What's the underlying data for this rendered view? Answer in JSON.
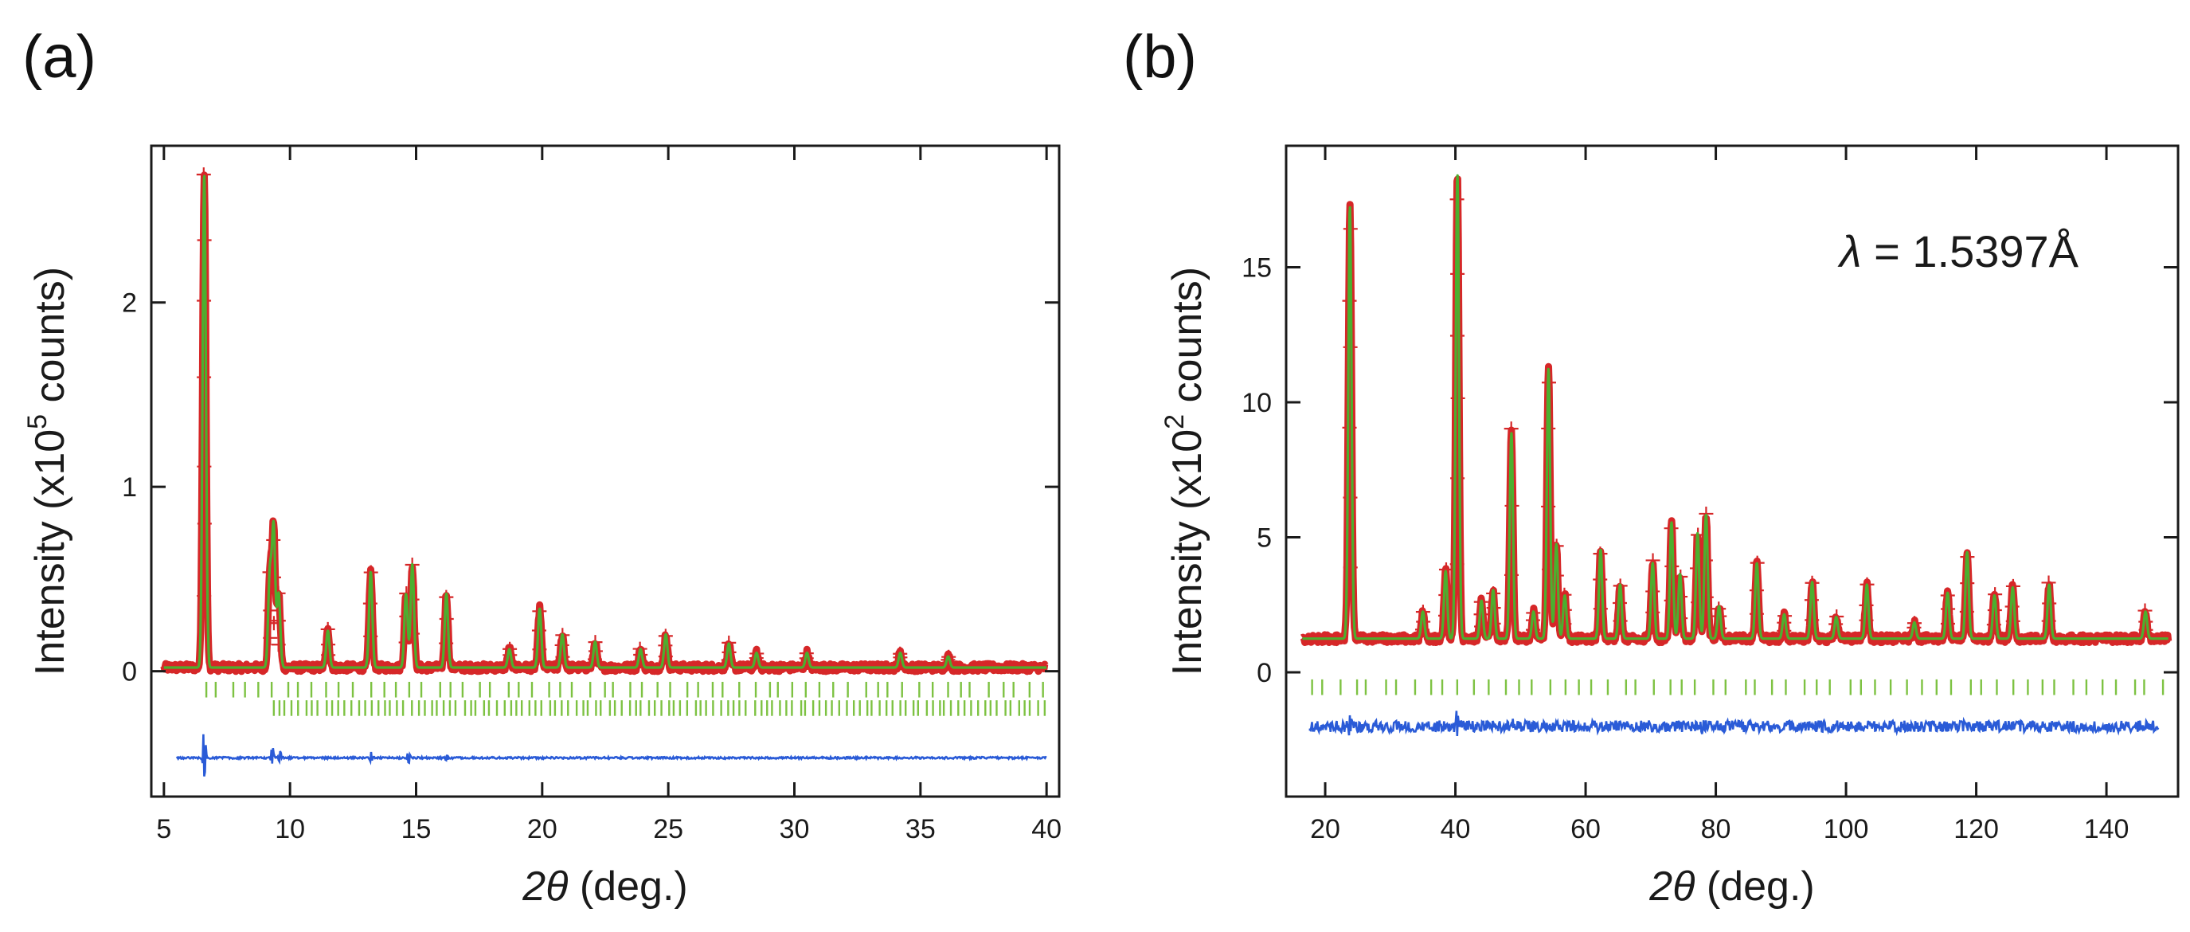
{
  "colors": {
    "observed": "#d62728",
    "calculated": "#4caf2f",
    "reflections": "#7dc242",
    "difference": "#2a5bd7",
    "axis": "#1a1a1a"
  },
  "chart_data": [
    {
      "panel_label": "(a)",
      "type": "line",
      "title": "",
      "xlabel_symbol": "2θ",
      "xlabel_unit": "(deg.)",
      "ylabel": "Intensity (x10",
      "ylabel_exp": "5",
      "ylabel_suffix": " counts)",
      "xlim": [
        4.5,
        40.5
      ],
      "ylim": [
        -0.68,
        2.85
      ],
      "xticks": [
        5,
        10,
        15,
        20,
        25,
        30,
        35,
        40
      ],
      "xtick_labels": [
        "5",
        "10",
        "15",
        "20",
        "25",
        "30",
        "35",
        "40"
      ],
      "yticks": [
        0,
        1,
        2
      ],
      "ytick_labels": [
        "0",
        "1",
        "2"
      ],
      "x_range": [
        5.0,
        40.0
      ],
      "background": 0.02,
      "peaks": [
        {
          "pos": 6.6,
          "height": 2.68
        },
        {
          "pos": 9.2,
          "height": 0.5
        },
        {
          "pos": 9.35,
          "height": 0.75
        },
        {
          "pos": 9.55,
          "height": 0.4
        },
        {
          "pos": 11.5,
          "height": 0.2
        },
        {
          "pos": 13.2,
          "height": 0.52
        },
        {
          "pos": 14.6,
          "height": 0.4
        },
        {
          "pos": 14.85,
          "height": 0.56
        },
        {
          "pos": 16.2,
          "height": 0.4
        },
        {
          "pos": 18.7,
          "height": 0.1
        },
        {
          "pos": 19.9,
          "height": 0.32
        },
        {
          "pos": 20.8,
          "height": 0.18
        },
        {
          "pos": 22.1,
          "height": 0.14
        },
        {
          "pos": 23.9,
          "height": 0.1
        },
        {
          "pos": 24.9,
          "height": 0.18
        },
        {
          "pos": 27.4,
          "height": 0.13
        },
        {
          "pos": 28.5,
          "height": 0.08
        },
        {
          "pos": 30.5,
          "height": 0.08
        },
        {
          "pos": 34.2,
          "height": 0.08
        },
        {
          "pos": 36.1,
          "height": 0.06
        }
      ],
      "refl_rows": [
        {
          "y": -0.1,
          "start": 6.6,
          "end": 39.8,
          "n": 62
        },
        {
          "y": -0.2,
          "start": 9.3,
          "end": 39.9,
          "n": 118
        }
      ],
      "difference": {
        "offset": -0.47,
        "x_start": 5.5,
        "x_end": 40.0,
        "spikes": [
          {
            "pos": 6.6,
            "amp": 0.17
          },
          {
            "pos": 9.3,
            "amp": 0.06
          },
          {
            "pos": 9.6,
            "amp": 0.04
          },
          {
            "pos": 13.2,
            "amp": 0.03
          },
          {
            "pos": 14.7,
            "amp": 0.04
          },
          {
            "pos": 16.2,
            "amp": 0.02
          }
        ]
      }
    },
    {
      "panel_label": "(b)",
      "type": "line",
      "title": "",
      "xlabel_symbol": "2θ",
      "xlabel_unit": "(deg.)",
      "ylabel": "Intensity (x10",
      "ylabel_exp": "2",
      "ylabel_suffix": " counts)",
      "annotation_symbol": "λ",
      "annotation_value": " = 1.5397Å",
      "xlim": [
        14,
        151
      ],
      "ylim": [
        -4.6,
        19.5
      ],
      "xticks": [
        20,
        40,
        60,
        80,
        100,
        120,
        140
      ],
      "xtick_labels": [
        "20",
        "40",
        "60",
        "80",
        "100",
        "120",
        "140"
      ],
      "yticks": [
        0,
        5,
        10,
        15
      ],
      "ytick_labels": [
        "0",
        "5",
        "10",
        "15"
      ],
      "x_range": [
        16.5,
        149.5
      ],
      "background": 1.25,
      "peaks": [
        {
          "pos": 23.8,
          "height": 16.0
        },
        {
          "pos": 35.0,
          "height": 1.0
        },
        {
          "pos": 38.5,
          "height": 2.5
        },
        {
          "pos": 40.3,
          "height": 17.2
        },
        {
          "pos": 44.0,
          "height": 1.4
        },
        {
          "pos": 45.8,
          "height": 1.8
        },
        {
          "pos": 48.6,
          "height": 7.6
        },
        {
          "pos": 52.0,
          "height": 1.0
        },
        {
          "pos": 54.3,
          "height": 10.0
        },
        {
          "pos": 55.5,
          "height": 3.5
        },
        {
          "pos": 56.8,
          "height": 1.6
        },
        {
          "pos": 62.3,
          "height": 3.3
        },
        {
          "pos": 65.3,
          "height": 2.0
        },
        {
          "pos": 70.3,
          "height": 2.8
        },
        {
          "pos": 73.2,
          "height": 4.3
        },
        {
          "pos": 74.5,
          "height": 2.4
        },
        {
          "pos": 77.2,
          "height": 3.9
        },
        {
          "pos": 78.5,
          "height": 4.6
        },
        {
          "pos": 80.5,
          "height": 1.2
        },
        {
          "pos": 86.3,
          "height": 2.8
        },
        {
          "pos": 90.5,
          "height": 0.9
        },
        {
          "pos": 94.8,
          "height": 2.1
        },
        {
          "pos": 98.5,
          "height": 0.8
        },
        {
          "pos": 103.2,
          "height": 2.0
        },
        {
          "pos": 110.5,
          "height": 0.6
        },
        {
          "pos": 115.6,
          "height": 1.7
        },
        {
          "pos": 118.6,
          "height": 3.2
        },
        {
          "pos": 122.8,
          "height": 1.6
        },
        {
          "pos": 125.6,
          "height": 1.9
        },
        {
          "pos": 131.2,
          "height": 2.0
        },
        {
          "pos": 146.0,
          "height": 1.0
        }
      ],
      "refl_rows": [
        {
          "y": -0.55,
          "start": 17.5,
          "end": 148.5,
          "n": 58
        }
      ],
      "difference": {
        "offset": -2.0,
        "x_start": 17.5,
        "x_end": 148.0,
        "spikes": [
          {
            "pos": 23.8,
            "amp": 0.5
          },
          {
            "pos": 40.3,
            "amp": 0.7
          },
          {
            "pos": 48.6,
            "amp": 0.3
          },
          {
            "pos": 54.3,
            "amp": 0.4
          },
          {
            "pos": 78.0,
            "amp": 0.25
          }
        ]
      }
    }
  ]
}
